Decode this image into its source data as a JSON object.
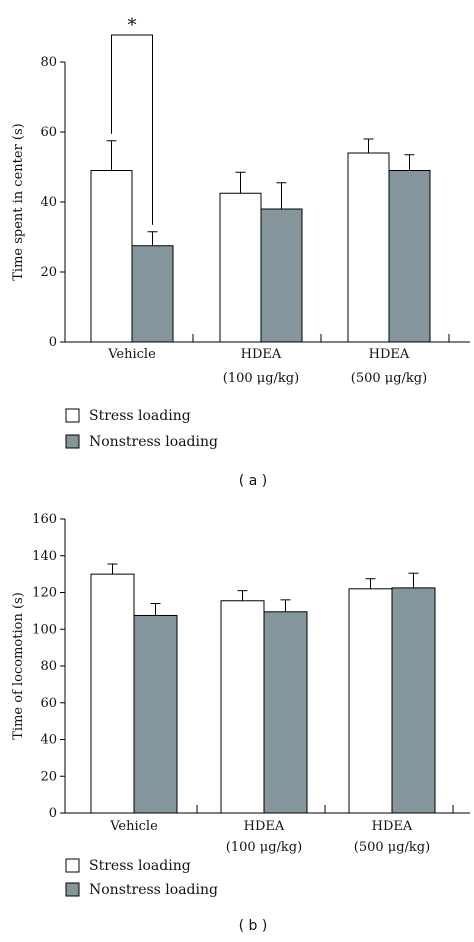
{
  "chart_data": [
    {
      "type": "bar",
      "panel_label": "( a )",
      "ylabel": "Time spent in center (s)",
      "ylim": [
        0,
        80
      ],
      "yticks": [
        0,
        20,
        40,
        60,
        80
      ],
      "categories": [
        {
          "line1": "Vehicle",
          "line2": ""
        },
        {
          "line1": "HDEA",
          "line2": "(100 μg/kg)"
        },
        {
          "line1": "HDEA",
          "line2": "(500 μg/kg)"
        }
      ],
      "series": [
        {
          "name": "Stress loading",
          "color": "#ffffff",
          "values": [
            49,
            42.5,
            54
          ],
          "errors": [
            8.5,
            6,
            4
          ]
        },
        {
          "name": "Nonstress loading",
          "color": "#84969b",
          "values": [
            27.5,
            38,
            49
          ],
          "errors": [
            4,
            7.5,
            4.5
          ]
        }
      ],
      "significance": {
        "label": "*",
        "category_index": 0
      }
    },
    {
      "type": "bar",
      "panel_label": "( b )",
      "ylabel": "Time of locomotion (s)",
      "ylim": [
        0,
        160
      ],
      "yticks": [
        0,
        20,
        40,
        60,
        80,
        100,
        120,
        140,
        160
      ],
      "categories": [
        {
          "line1": "Vehicle",
          "line2": ""
        },
        {
          "line1": "HDEA",
          "line2": "(100 μg/kg)"
        },
        {
          "line1": "HDEA",
          "line2": "(500 μg/kg)"
        }
      ],
      "series": [
        {
          "name": "Stress loading",
          "color": "#ffffff",
          "values": [
            130,
            115.5,
            122
          ],
          "errors": [
            5.5,
            5.5,
            5.5
          ]
        },
        {
          "name": "Nonstress loading",
          "color": "#84969b",
          "values": [
            107.5,
            109.5,
            122.5
          ],
          "errors": [
            6.5,
            6.5,
            8
          ]
        }
      ]
    }
  ]
}
